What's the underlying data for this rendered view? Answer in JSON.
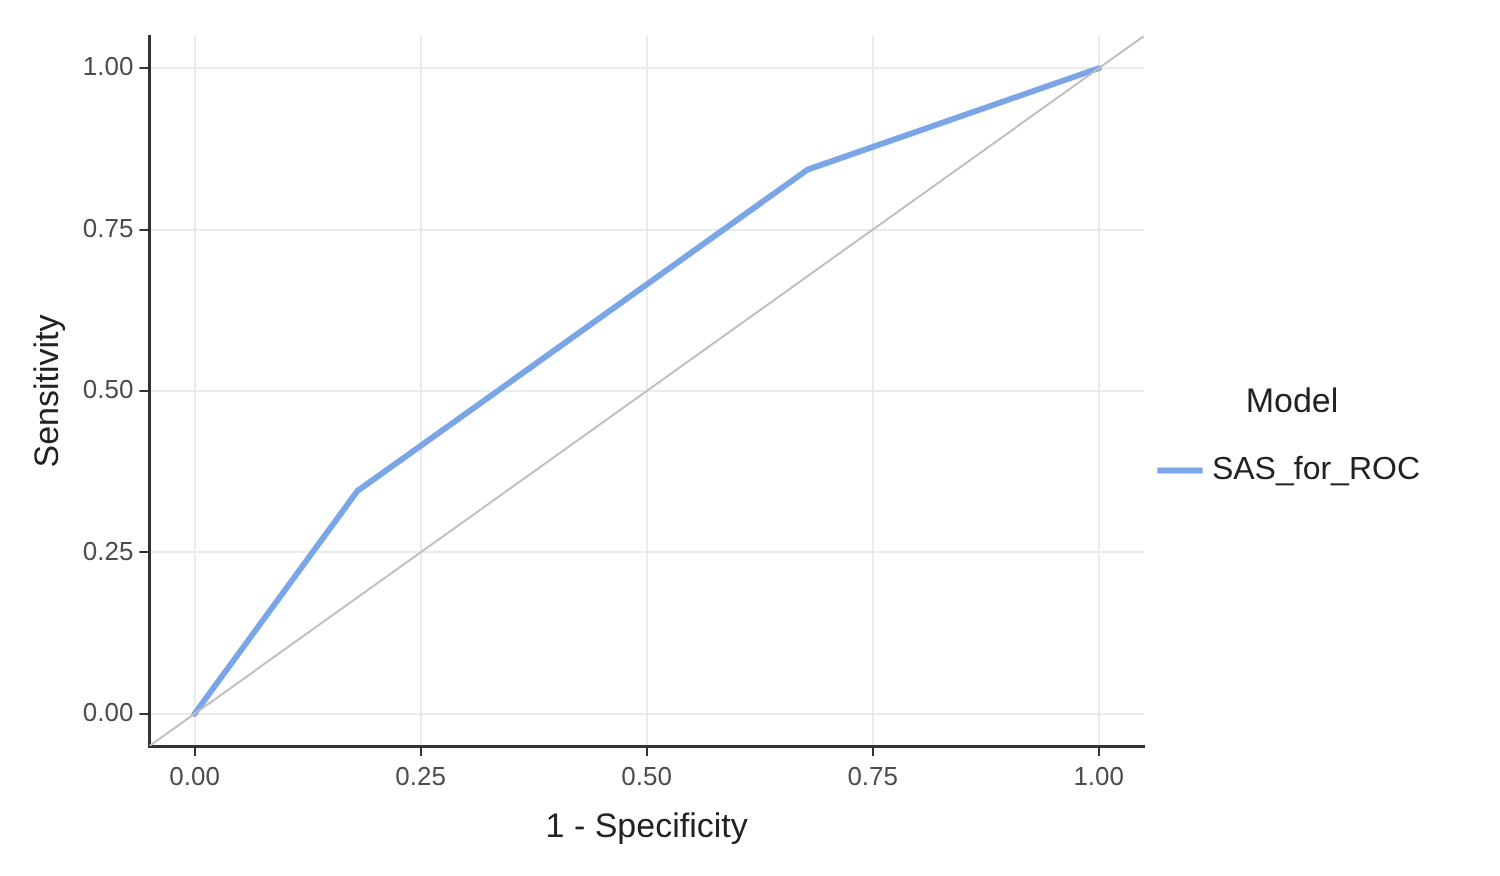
{
  "chart_data": {
    "type": "line",
    "xlabel": "1 - Specificity",
    "ylabel": "Sensitivity",
    "legend_title": "Model",
    "legend": "right",
    "grid": true,
    "marker": "none",
    "line_style": "solid",
    "xlim": [
      -0.05,
      1.05
    ],
    "ylim": [
      -0.05,
      1.05
    ],
    "xticks": [
      {
        "value": 0,
        "label": "0.00"
      },
      {
        "value": 0.25,
        "label": "0.25"
      },
      {
        "value": 0.5,
        "label": "0.50"
      },
      {
        "value": 0.75,
        "label": "0.75"
      },
      {
        "value": 1,
        "label": "1.00"
      }
    ],
    "yticks": [
      {
        "value": 0,
        "label": "0.00"
      },
      {
        "value": 0.25,
        "label": "0.25"
      },
      {
        "value": 0.5,
        "label": "0.50"
      },
      {
        "value": 0.75,
        "label": "0.75"
      },
      {
        "value": 1,
        "label": "1.00"
      }
    ],
    "series": [
      {
        "color": "#bebebe",
        "x": [
          -0.05,
          1.05
        ],
        "values": [
          -0.05,
          1.05
        ]
      },
      {
        "name": "SAS_for_ROC",
        "color": "#7aa6e8",
        "x": [
          0,
          0.18,
          0.678,
          1
        ],
        "values": [
          0,
          0.345,
          0.843,
          1
        ]
      }
    ]
  }
}
